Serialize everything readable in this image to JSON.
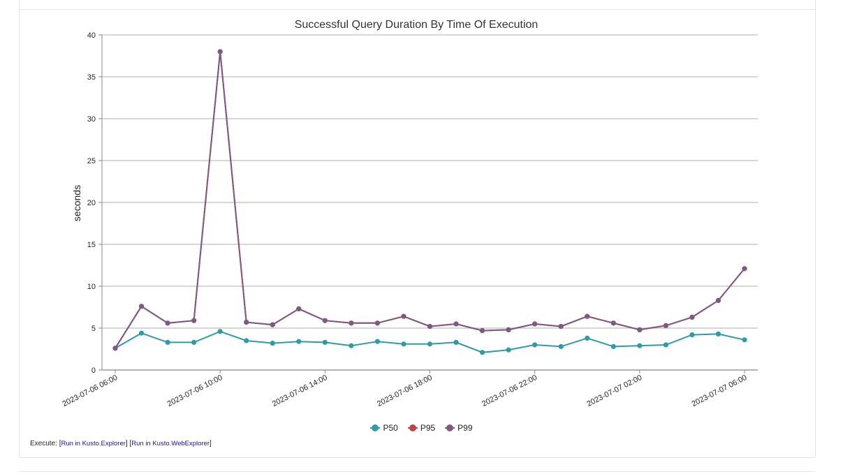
{
  "chart_data": {
    "type": "line",
    "title": "Successful Query Duration By Time Of Execution",
    "xlabel": "",
    "ylabel": "seconds",
    "ylim": [
      0,
      40
    ],
    "yticks": [
      "0",
      "5",
      "10",
      "15",
      "20",
      "25",
      "30",
      "35",
      "40"
    ],
    "grid": true,
    "legend": "bottom",
    "x": [
      "2023-07-06 06:00",
      "2023-07-06 07:00",
      "2023-07-06 08:00",
      "2023-07-06 09:00",
      "2023-07-06 10:00",
      "2023-07-06 11:00",
      "2023-07-06 12:00",
      "2023-07-06 13:00",
      "2023-07-06 14:00",
      "2023-07-06 15:00",
      "2023-07-06 16:00",
      "2023-07-06 17:00",
      "2023-07-06 18:00",
      "2023-07-06 19:00",
      "2023-07-06 20:00",
      "2023-07-06 21:00",
      "2023-07-06 22:00",
      "2023-07-06 23:00",
      "2023-07-07 00:00",
      "2023-07-07 01:00",
      "2023-07-07 02:00",
      "2023-07-07 03:00",
      "2023-07-07 04:00",
      "2023-07-07 05:00",
      "2023-07-07 06:00"
    ],
    "xtick_labels": [
      "2023-07-06 06:00",
      "2023-07-06 10:00",
      "2023-07-06 14:00",
      "2023-07-06 18:00",
      "2023-07-06 22:00",
      "2023-07-07 02:00",
      "2023-07-07 06:00"
    ],
    "series": [
      {
        "name": "P50",
        "color": "#2e9ba6",
        "values": [
          2.6,
          4.4,
          3.3,
          3.3,
          4.6,
          3.5,
          3.2,
          3.4,
          3.3,
          2.9,
          3.4,
          3.1,
          3.1,
          3.3,
          2.1,
          2.4,
          3.0,
          2.8,
          3.8,
          2.8,
          2.9,
          3.0,
          4.2,
          4.3,
          3.6
        ]
      },
      {
        "name": "P95",
        "color": "#b94546",
        "values": [
          2.6,
          7.6,
          5.6,
          5.9,
          38.0,
          5.7,
          5.4,
          7.3,
          5.9,
          5.6,
          5.6,
          6.4,
          5.2,
          5.5,
          4.7,
          4.8,
          5.5,
          5.2,
          6.4,
          5.6,
          4.8,
          5.3,
          6.3,
          8.3,
          12.1
        ]
      },
      {
        "name": "P99",
        "color": "#7e5a83",
        "values": [
          2.6,
          7.6,
          5.6,
          5.9,
          38.0,
          5.7,
          5.4,
          7.3,
          5.9,
          5.6,
          5.6,
          6.4,
          5.2,
          5.5,
          4.7,
          4.8,
          5.5,
          5.2,
          6.4,
          5.6,
          4.8,
          5.3,
          6.3,
          8.3,
          12.1
        ]
      }
    ]
  },
  "footer": {
    "execute_label": "Execute:",
    "link1": "Run in Kusto.Explorer",
    "link2": "Run in Kusto.WebExplorer"
  }
}
